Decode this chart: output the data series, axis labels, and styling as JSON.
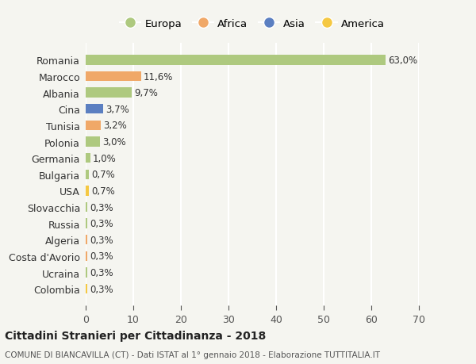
{
  "countries": [
    "Romania",
    "Marocco",
    "Albania",
    "Cina",
    "Tunisia",
    "Polonia",
    "Germania",
    "Bulgaria",
    "USA",
    "Slovacchia",
    "Russia",
    "Algeria",
    "Costa d'Avorio",
    "Ucraina",
    "Colombia"
  ],
  "values": [
    63.0,
    11.6,
    9.7,
    3.7,
    3.2,
    3.0,
    1.0,
    0.7,
    0.7,
    0.3,
    0.3,
    0.3,
    0.3,
    0.3,
    0.3
  ],
  "labels": [
    "63,0%",
    "11,6%",
    "9,7%",
    "3,7%",
    "3,2%",
    "3,0%",
    "1,0%",
    "0,7%",
    "0,7%",
    "0,3%",
    "0,3%",
    "0,3%",
    "0,3%",
    "0,3%",
    "0,3%"
  ],
  "continents": [
    "Europa",
    "Africa",
    "Europa",
    "Asia",
    "Africa",
    "Europa",
    "Europa",
    "Europa",
    "America",
    "Europa",
    "Europa",
    "Africa",
    "Africa",
    "Europa",
    "America"
  ],
  "colors": {
    "Europa": "#aec97f",
    "Africa": "#f0a868",
    "Asia": "#5b7fc1",
    "America": "#f5c842"
  },
  "legend_order": [
    "Europa",
    "Africa",
    "Asia",
    "America"
  ],
  "xlim": [
    0,
    70
  ],
  "xticks": [
    0,
    10,
    20,
    30,
    40,
    50,
    60,
    70
  ],
  "title": "Cittadini Stranieri per Cittadinanza - 2018",
  "subtitle": "COMUNE DI BIANCAVILLA (CT) - Dati ISTAT al 1° gennaio 2018 - Elaborazione TUTTITALIA.IT",
  "background_color": "#f5f5f0",
  "grid_color": "#ffffff",
  "bar_height": 0.6
}
